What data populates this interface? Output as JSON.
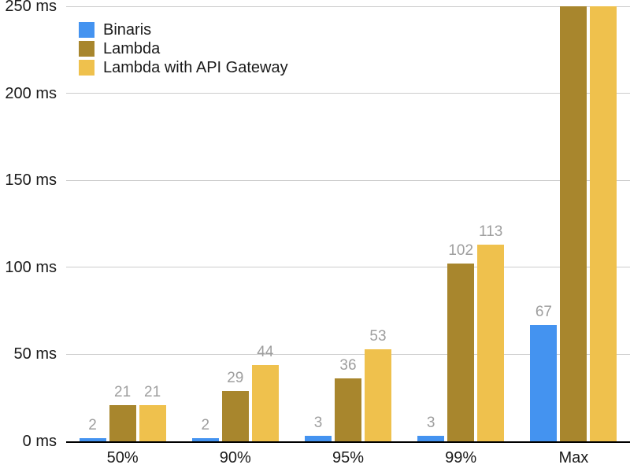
{
  "chart_data": {
    "type": "bar",
    "title": "",
    "xlabel": "",
    "ylabel": "",
    "unit": "ms",
    "categories": [
      "50%",
      "90%",
      "95%",
      "99%",
      "Max"
    ],
    "series": [
      {
        "name": "Binaris",
        "color": "#4493F0",
        "values": [
          2,
          2,
          3,
          3,
          67
        ],
        "labels": [
          "2",
          "2",
          "3",
          "3",
          "67"
        ],
        "clipped": [
          false,
          false,
          false,
          false,
          false
        ]
      },
      {
        "name": "Lambda",
        "color": "#A8862D",
        "values": [
          21,
          29,
          36,
          102,
          250
        ],
        "labels": [
          "21",
          "29",
          "36",
          "102",
          ""
        ],
        "clipped": [
          false,
          false,
          false,
          false,
          true
        ]
      },
      {
        "name": "Lambda with API Gateway",
        "color": "#EFC14D",
        "values": [
          21,
          44,
          53,
          113,
          250
        ],
        "labels": [
          "21",
          "44",
          "53",
          "113",
          ""
        ],
        "clipped": [
          false,
          false,
          false,
          false,
          true
        ]
      }
    ],
    "ylim": [
      0,
      250
    ],
    "yticks": [
      {
        "value": 0,
        "label": "0 ms"
      },
      {
        "value": 50,
        "label": "50 ms"
      },
      {
        "value": 100,
        "label": "100 ms"
      },
      {
        "value": 150,
        "label": "150 ms"
      },
      {
        "value": 200,
        "label": "200 ms"
      },
      {
        "value": 250,
        "label": "250 ms"
      }
    ],
    "grid": true,
    "legend_position": "top-left",
    "colors": {
      "grid": "#CCCCCC",
      "baseline": "#000000",
      "data_label": "#9E9E9E",
      "axis_text": "#1A1A1A",
      "background": "#FFFFFF"
    }
  }
}
